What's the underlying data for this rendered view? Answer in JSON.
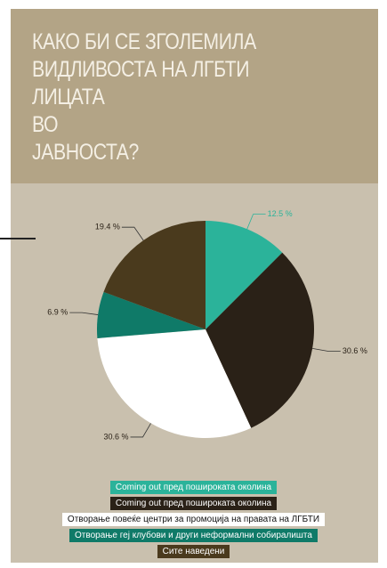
{
  "chart_data": {
    "type": "pie",
    "title": "КАКО БИ СЕ ЗГОЛЕМИЛА\nВИДЛИВОСТА НА ЛГБТИ ЛИЦАТА\nВО\nЈАВНОСТА?",
    "categories": [
      "Coming out пред поширoката околина",
      "Coming out пред поширoката околина",
      "Отворање повеќе центри за промоција на правата на ЛГБТИ",
      "Отворање геј клубови и други неформални собиралишта",
      "Сите наведени"
    ],
    "values": [
      12.5,
      30.6,
      30.6,
      6.9,
      19.4
    ],
    "value_labels": [
      "12.5 %",
      "30.6 %",
      "30.6 %",
      "6.9 %",
      "19.4 %"
    ],
    "colors": [
      "#2bb39a",
      "#2a2117",
      "#ffffff",
      "#0f7a68",
      "#4a3a1d"
    ]
  }
}
